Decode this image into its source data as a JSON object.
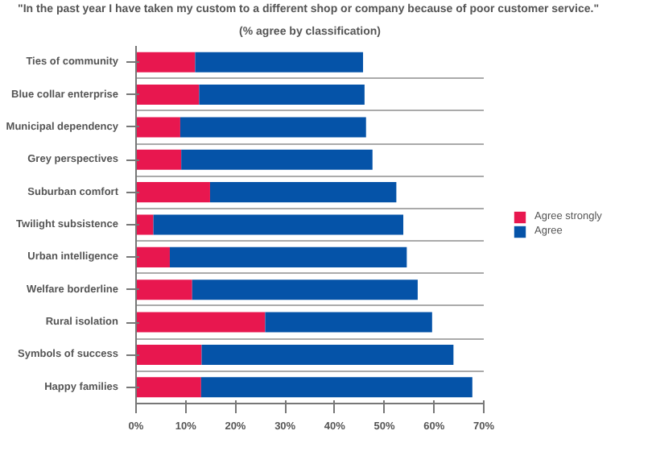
{
  "chart_data": {
    "type": "bar",
    "orientation": "horizontal",
    "stacked": true,
    "title": "\"In the past  year I have taken my custom to a different shop or company because of poor customer service.\"",
    "subtitle": "(% agree by classification)",
    "categories": [
      "Ties of community",
      "Blue collar enterprise",
      "Municipal dependency",
      "Grey perspectives",
      "Suburban comfort",
      "Twilight subsistence",
      "Urban intelligence",
      "Welfare borderline",
      "Rural isolation",
      "Symbols of success",
      "Happy families"
    ],
    "series": [
      {
        "name": "Agree strongly",
        "color": "#e8174f",
        "values": [
          11.9,
          12.7,
          8.9,
          9.1,
          14.9,
          3.5,
          6.8,
          11.3,
          26.0,
          13.2,
          13.1
        ]
      },
      {
        "name": "Agree",
        "color": "#0553a8",
        "values": [
          33.8,
          33.3,
          37.4,
          38.5,
          37.5,
          50.3,
          47.7,
          45.4,
          33.6,
          50.7,
          54.6
        ]
      }
    ],
    "xlim": [
      0,
      70
    ],
    "xticks": [
      {
        "value": 0,
        "label": "0%"
      },
      {
        "value": 10,
        "label": "10%"
      },
      {
        "value": 20,
        "label": "20%"
      },
      {
        "value": 30,
        "label": "30%"
      },
      {
        "value": 40,
        "label": "40%"
      },
      {
        "value": 50,
        "label": "50%"
      },
      {
        "value": 60,
        "label": "60%"
      },
      {
        "value": 70,
        "label": "70%"
      }
    ],
    "grid": "y",
    "legend": "right"
  }
}
